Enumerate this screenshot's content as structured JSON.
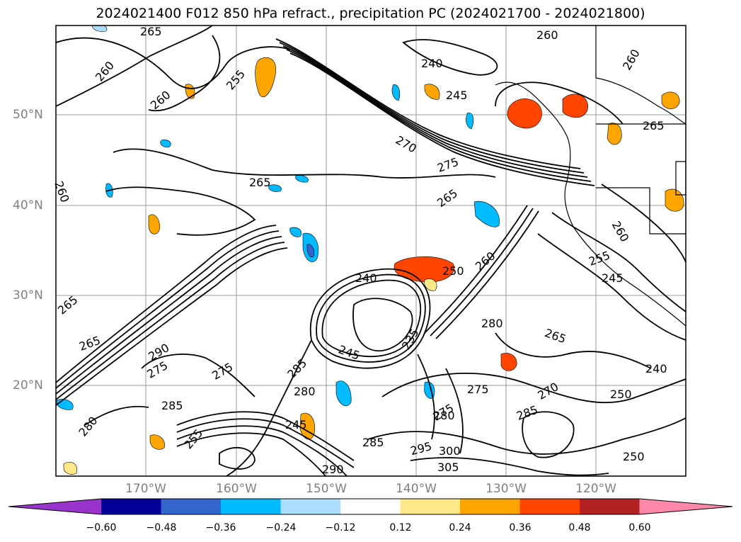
{
  "title": "2024021400 F012 850 hPa refract., precipitation PC (2024021700 - 2024021800)",
  "lat_labels": [
    "50°N",
    "40°N",
    "30°N",
    "20°N"
  ],
  "lon_labels": [
    "170°W",
    "160°W",
    "150°W",
    "140°W",
    "130°W",
    "120°W"
  ],
  "colorbar": {
    "ticks": [
      "−0.60",
      "−0.48",
      "−0.36",
      "−0.24",
      "−0.12",
      "0.12",
      "0.24",
      "0.36",
      "0.48",
      "0.60"
    ],
    "colors": [
      "#9933cc",
      "#000099",
      "#3366cc",
      "#00bbff",
      "#aaddff",
      "#ffffff",
      "#ffe88a",
      "#ffa500",
      "#ff4500",
      "#b22222",
      "#ff88aa"
    ]
  },
  "contour_labels": [
    "265",
    "260",
    "260",
    "255",
    "260",
    "240",
    "245",
    "260",
    "265",
    "265",
    "270",
    "275",
    "265",
    "260",
    "265",
    "260",
    "255",
    "245",
    "250",
    "240",
    "260",
    "235",
    "245",
    "275",
    "265",
    "285",
    "290",
    "275",
    "275",
    "285",
    "280",
    "280",
    "265",
    "250",
    "240",
    "270",
    "285",
    "275",
    "245",
    "280",
    "295",
    "300",
    "305",
    "290",
    "285",
    "280",
    "250",
    "255"
  ]
}
